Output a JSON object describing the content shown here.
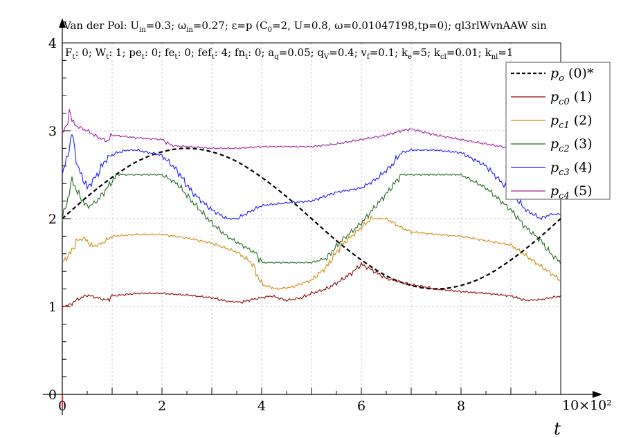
{
  "chart_data": {
    "type": "line",
    "title": "Van der Pol: U_in=0.3; ω_in=0.27; ε=p (C_0=2, U=0.8, ω=0.01047198,tp=0); ql3rlWvnAAW sin",
    "title_parts": {
      "a": "Van der Pol: U",
      "a_sub": "in",
      "b": "=0.3; ω",
      "b_sub": "in",
      "c": "=0.27; ε=p (C",
      "c_sub": "0",
      "d": "=2, U=0.8, ω=0.01047198,tp=0); ql3rlWvnAAW sin"
    },
    "subtitle": "F_t: 0; W_t: 1; pe_t: 0; fe_t: 0; fef_t: 4; fn_t: 0; a_q=0.05; q_V=0.4; v_f=0.1; k_e=5; k_cl=0.01; k_nl=1",
    "subtitle_parts": [
      {
        "t": "F",
        "s": "t"
      },
      {
        "t": ": 0; W",
        "s": "t"
      },
      {
        "t": ": 1; pe",
        "s": "t"
      },
      {
        "t": ": 0; fe",
        "s": "t"
      },
      {
        "t": ": 0; fef",
        "s": "t"
      },
      {
        "t": ": 4; fn",
        "s": "t"
      },
      {
        "t": ": 0; a",
        "s": "q"
      },
      {
        "t": "=0.05; q",
        "s": "V"
      },
      {
        "t": "=0.4; v",
        "s": "f"
      },
      {
        "t": "=0.1; k",
        "s": "e"
      },
      {
        "t": "=5; k",
        "s": "cl"
      },
      {
        "t": "=0.01; k",
        "s": "nl"
      },
      {
        "t": "=1",
        "s": ""
      }
    ],
    "xlabel": "t",
    "x_multiplier": "10×10²",
    "xlim": [
      0,
      10
    ],
    "ylim": [
      0,
      4
    ],
    "x_ticks": [
      "0",
      "2",
      "4",
      "6",
      "8"
    ],
    "y_ticks": [
      "0",
      "1",
      "2",
      "3",
      "4"
    ],
    "grid": true,
    "legend_position": "top-right",
    "series": [
      {
        "name": "p_o (0)*",
        "base": "p",
        "sub": "o",
        "tag": " (0)*",
        "color": "#000000",
        "dashed": true,
        "x": [
          0,
          0.5,
          1,
          1.5,
          2,
          2.5,
          3,
          3.5,
          4,
          4.5,
          5,
          5.5,
          6,
          6.5,
          7,
          7.5,
          8,
          8.5,
          9,
          9.5,
          10
        ],
        "y": [
          2.0,
          2.25,
          2.47,
          2.65,
          2.76,
          2.8,
          2.76,
          2.65,
          2.47,
          2.25,
          2.0,
          1.75,
          1.53,
          1.35,
          1.24,
          1.2,
          1.24,
          1.35,
          1.53,
          1.75,
          2.0
        ]
      },
      {
        "name": "p_c0 (1)",
        "base": "p",
        "sub": "c0",
        "tag": " (1)",
        "color": "#8b0000",
        "dashed": false,
        "x": [
          0,
          0.15,
          0.3,
          0.5,
          0.7,
          0.9,
          1.0,
          1.5,
          2.0,
          2.5,
          3.0,
          3.3,
          3.6,
          3.8,
          4.0,
          4.2,
          4.5,
          4.8,
          5.0,
          5.3,
          5.6,
          5.8,
          6.0,
          6.2,
          6.5,
          7.0,
          7.5,
          8.0,
          8.5,
          9.0,
          9.3,
          9.6,
          10
        ],
        "y": [
          1.0,
          1.02,
          1.08,
          1.13,
          1.1,
          1.07,
          1.12,
          1.15,
          1.15,
          1.13,
          1.1,
          1.06,
          1.05,
          1.08,
          1.1,
          1.12,
          1.07,
          1.1,
          1.15,
          1.2,
          1.3,
          1.38,
          1.48,
          1.42,
          1.32,
          1.25,
          1.2,
          1.17,
          1.15,
          1.12,
          1.07,
          1.08,
          1.12
        ]
      },
      {
        "name": "p_c1 (2)",
        "base": "p",
        "sub": "c1",
        "tag": " (2)",
        "color": "#d08a10",
        "dashed": false,
        "x": [
          0,
          0.15,
          0.3,
          0.45,
          0.6,
          0.8,
          1.0,
          1.5,
          2.0,
          2.5,
          3.0,
          3.5,
          3.8,
          4.0,
          4.3,
          4.6,
          5.0,
          5.3,
          5.6,
          5.9,
          6.2,
          6.5,
          6.8,
          7.0,
          7.5,
          8.0,
          8.5,
          9.0,
          9.5,
          10
        ],
        "y": [
          1.5,
          1.6,
          1.75,
          1.78,
          1.68,
          1.72,
          1.8,
          1.82,
          1.82,
          1.78,
          1.72,
          1.62,
          1.5,
          1.25,
          1.2,
          1.22,
          1.3,
          1.45,
          1.7,
          1.85,
          2.0,
          2.0,
          1.9,
          1.85,
          1.82,
          1.8,
          1.75,
          1.7,
          1.5,
          1.3
        ]
      },
      {
        "name": "p_c2 (3)",
        "base": "p",
        "sub": "c2",
        "tag": " (3)",
        "color": "#226b22",
        "dashed": false,
        "x": [
          0,
          0.1,
          0.2,
          0.3,
          0.5,
          0.7,
          0.9,
          1.1,
          1.3,
          1.5,
          2.0,
          2.3,
          2.6,
          3.0,
          3.3,
          3.6,
          3.9,
          4.0,
          4.5,
          5.0,
          5.3,
          5.6,
          6.0,
          6.3,
          6.6,
          6.8,
          7.0,
          7.5,
          8.0,
          8.5,
          9.0,
          9.3,
          9.6,
          9.8,
          10
        ],
        "y": [
          2.0,
          2.2,
          2.45,
          2.3,
          2.13,
          2.2,
          2.35,
          2.5,
          2.5,
          2.5,
          2.5,
          2.4,
          2.2,
          1.95,
          1.8,
          1.7,
          1.6,
          1.5,
          1.5,
          1.5,
          1.55,
          1.75,
          1.95,
          2.15,
          2.35,
          2.5,
          2.5,
          2.5,
          2.5,
          2.35,
          2.1,
          1.9,
          1.75,
          1.6,
          1.5
        ]
      },
      {
        "name": "p_c3 (4)",
        "base": "p",
        "sub": "c3",
        "tag": " (4)",
        "color": "#1a1aff",
        "dashed": false,
        "x": [
          0,
          0.1,
          0.2,
          0.3,
          0.5,
          0.7,
          0.9,
          1.1,
          1.3,
          1.5,
          2.0,
          2.3,
          2.6,
          3.0,
          3.3,
          3.5,
          4.0,
          4.5,
          5.0,
          5.5,
          6.0,
          6.3,
          6.6,
          6.8,
          7.0,
          7.5,
          8.0,
          8.5,
          9.0,
          9.3,
          9.6,
          9.8,
          10
        ],
        "y": [
          2.5,
          2.7,
          2.98,
          2.6,
          2.35,
          2.5,
          2.7,
          2.75,
          2.78,
          2.78,
          2.72,
          2.55,
          2.3,
          2.1,
          2.0,
          2.0,
          2.15,
          2.18,
          2.2,
          2.3,
          2.35,
          2.45,
          2.6,
          2.75,
          2.78,
          2.78,
          2.75,
          2.6,
          2.3,
          2.1,
          2.0,
          2.05,
          2.05
        ]
      },
      {
        "name": "p_c4 (5)",
        "base": "p",
        "sub": "c4",
        "tag": " (5)",
        "color": "#a020a0",
        "dashed": false,
        "x": [
          0,
          0.1,
          0.15,
          0.2,
          0.3,
          0.5,
          0.7,
          0.9,
          1.0,
          1.5,
          2.0,
          2.2,
          2.5,
          3.0,
          3.5,
          4.0,
          4.5,
          5.0,
          5.5,
          6.0,
          6.5,
          6.8,
          7.0,
          7.5,
          8.0,
          8.5,
          9.0,
          9.5,
          10
        ],
        "y": [
          3.0,
          3.05,
          3.28,
          3.1,
          3.05,
          3.0,
          2.93,
          2.88,
          2.95,
          2.92,
          2.9,
          2.83,
          2.82,
          2.8,
          2.8,
          2.82,
          2.82,
          2.82,
          2.85,
          2.9,
          2.95,
          3.0,
          3.02,
          2.95,
          2.9,
          2.85,
          2.8,
          2.78,
          2.75
        ]
      }
    ]
  }
}
